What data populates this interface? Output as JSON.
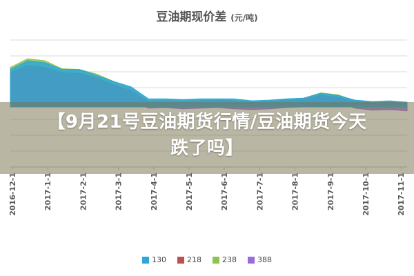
{
  "title": "豆油期现价差",
  "title_unit": "(元/吨)",
  "headline": "【9月21号豆油期货行情/豆油期货今天跌了吗】",
  "chart_data": {
    "type": "area",
    "title": "豆油期现价差 (元/吨)",
    "xlabel": "",
    "ylabel": "",
    "x_ticks": [
      "2016-12-1",
      "2017-1-1",
      "2017-2-1",
      "2017-3-1",
      "2017-4-1",
      "2017-5-1",
      "2017-6-1",
      "2017-7-1",
      "2017-8-1",
      "2017-9-1",
      "2017-10-1",
      "2017-11-1"
    ],
    "x": [
      "2016-12-1",
      "2016-12-15",
      "2017-1-1",
      "2017-1-15",
      "2017-2-1",
      "2017-2-15",
      "2017-3-1",
      "2017-3-15",
      "2017-4-1",
      "2017-4-15",
      "2017-5-1",
      "2017-5-15",
      "2017-6-1",
      "2017-6-15",
      "2017-7-1",
      "2017-7-15",
      "2017-8-1",
      "2017-8-15",
      "2017-9-1",
      "2017-9-15",
      "2017-10-1",
      "2017-10-15",
      "2017-11-1",
      "2017-11-15"
    ],
    "ylim": [
      -900,
      1000
    ],
    "grid": true,
    "legend": "bottom",
    "series": [
      {
        "name": "130",
        "color": "#2ea7d7",
        "values": [
          560,
          690,
          660,
          560,
          560,
          470,
          380,
          300,
          120,
          120,
          110,
          120,
          120,
          120,
          90,
          100,
          120,
          130,
          200,
          170,
          100,
          80,
          90,
          70
        ]
      },
      {
        "name": "218",
        "color": "#c0504d",
        "values": [
          510,
          620,
          590,
          510,
          500,
          430,
          330,
          240,
          80,
          90,
          80,
          90,
          100,
          90,
          70,
          80,
          100,
          110,
          170,
          140,
          80,
          60,
          70,
          50
        ]
      },
      {
        "name": "238",
        "color": "#8ec34f",
        "values": [
          590,
          720,
          690,
          570,
          560,
          490,
          380,
          280,
          100,
          110,
          100,
          110,
          110,
          100,
          90,
          90,
          110,
          130,
          210,
          180,
          90,
          70,
          80,
          60
        ]
      },
      {
        "name": "388",
        "color": "#9a6bdb",
        "values": [
          450,
          560,
          510,
          390,
          370,
          300,
          200,
          120,
          -20,
          -10,
          -30,
          -20,
          -10,
          -30,
          -40,
          -30,
          -10,
          0,
          90,
          60,
          -20,
          -50,
          -40,
          -60
        ]
      }
    ]
  }
}
